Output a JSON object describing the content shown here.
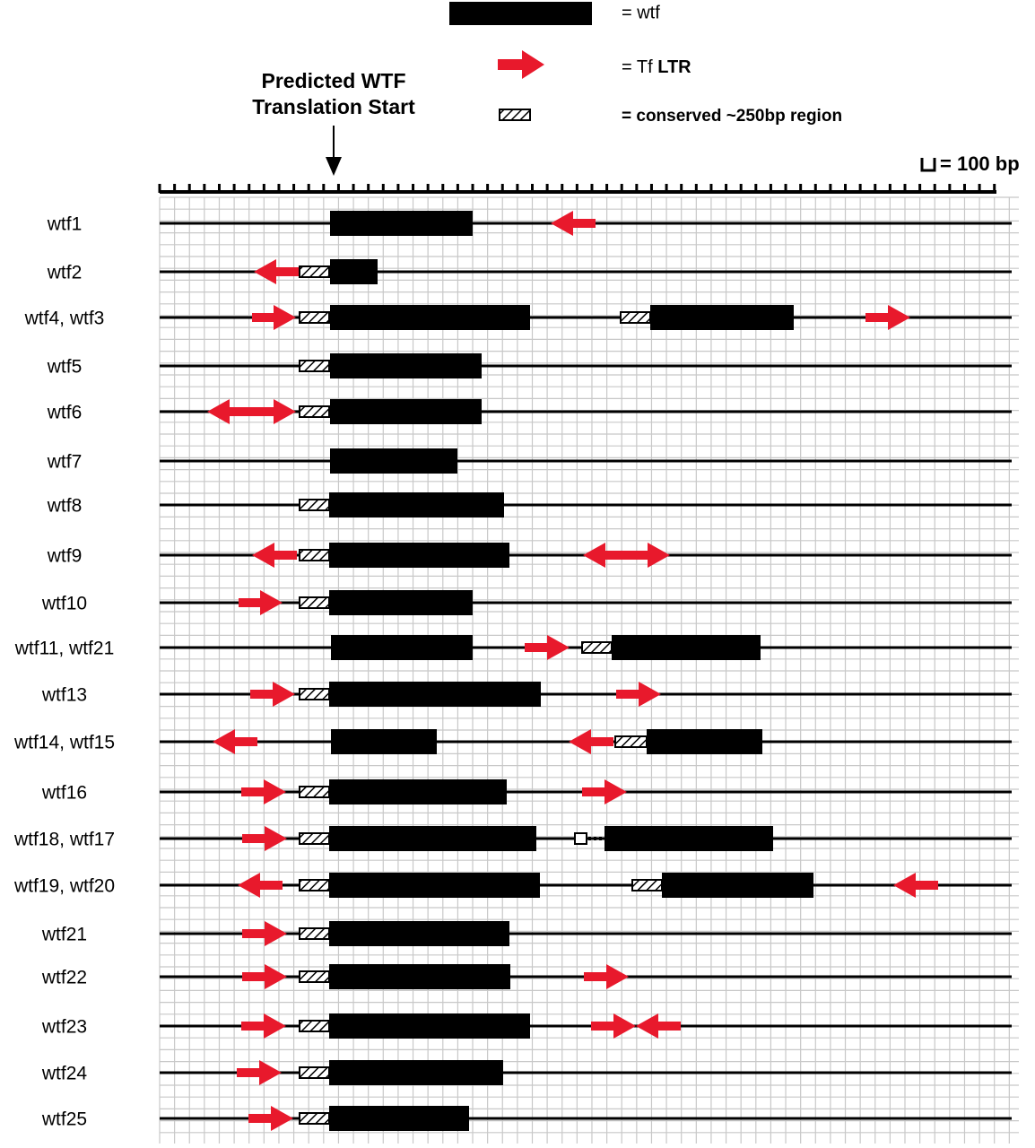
{
  "legend": {
    "wtf": "= wtf",
    "ltr_prefix": "= Tf",
    "ltr_bold": "LTR",
    "conserved": "= conserved ~250bp region"
  },
  "annotation": {
    "line1": "Predicted WTF",
    "line2": "Translation Start"
  },
  "scale": {
    "label": "= 100 bp"
  },
  "rows": [
    "wtf1",
    "wtf2",
    "wtf4, wtf3",
    "wtf5",
    "wtf6",
    "wtf7",
    "wtf8",
    "wtf9",
    "wtf10",
    "wtf11, wtf21",
    "wtf13",
    "wtf14, wtf15",
    "wtf16",
    "wtf18, wtf17",
    "wtf19, wtf20",
    "wtf21",
    "wtf22",
    "wtf23",
    "wtf24",
    "wtf25"
  ]
}
